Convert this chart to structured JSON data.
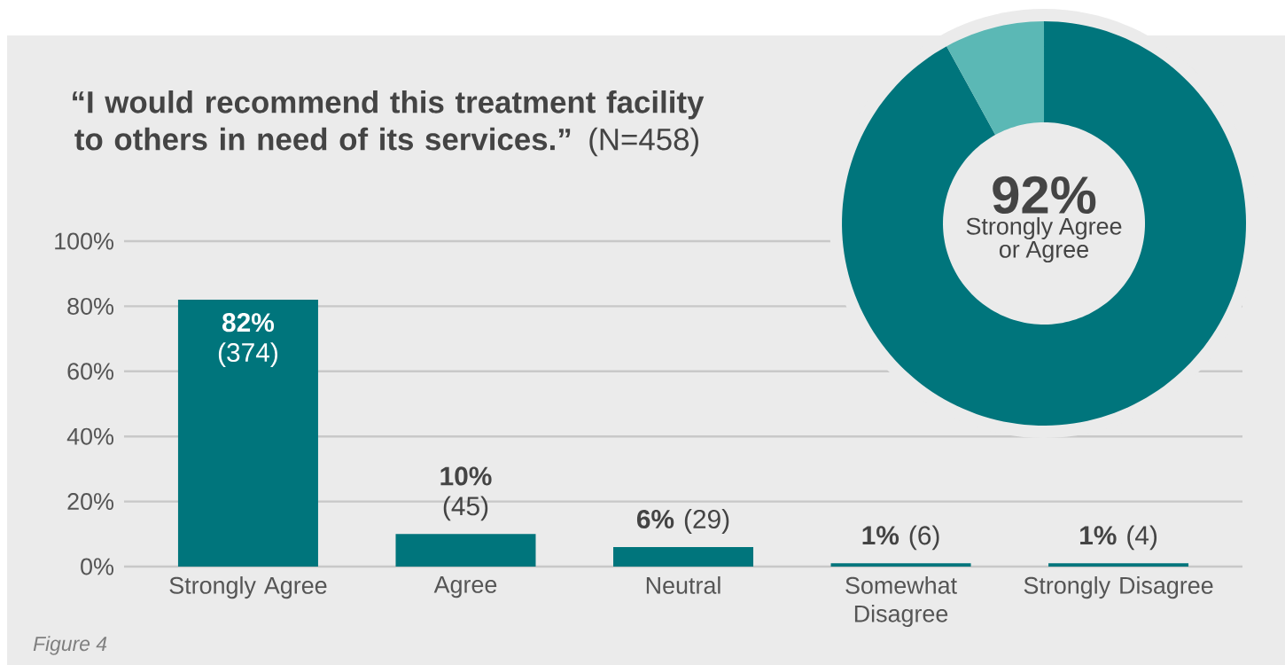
{
  "chart_data": [
    {
      "type": "bar",
      "title": "**“I would recommend this treatment facility to others in need of its services.”** (N=458)",
      "categories": [
        "Strongly Agree",
        "Agree",
        "Neutral",
        "Somewhat Disagree",
        "Strongly Disagree"
      ],
      "values": [
        82,
        10,
        6,
        1,
        1
      ],
      "color": "#00757c",
      "value_labels": [
        "**82%** (374)",
        "**10%** (45)",
        "**6%** (29)",
        "**1%** (6)",
        "**1%** (4)"
      ],
      "ylim": [
        0,
        100
      ],
      "yticks": [
        {
          "value": 0,
          "label": "0%"
        },
        {
          "value": 20,
          "label": "20%"
        },
        {
          "value": 40,
          "label": "40%"
        },
        {
          "value": 60,
          "label": "60%"
        },
        {
          "value": 80,
          "label": "80%"
        },
        {
          "value": 100,
          "label": "100%"
        }
      ],
      "grid": "y",
      "annotations": [
        "Figure 4"
      ]
    },
    {
      "type": "donut",
      "categories": [
        "Strongly Agree or Agree",
        null
      ],
      "values": [
        92,
        8
      ],
      "colors": [
        "#00757c",
        "#5bb8b5"
      ],
      "value_labels": [
        "92%",
        null
      ]
    }
  ]
}
